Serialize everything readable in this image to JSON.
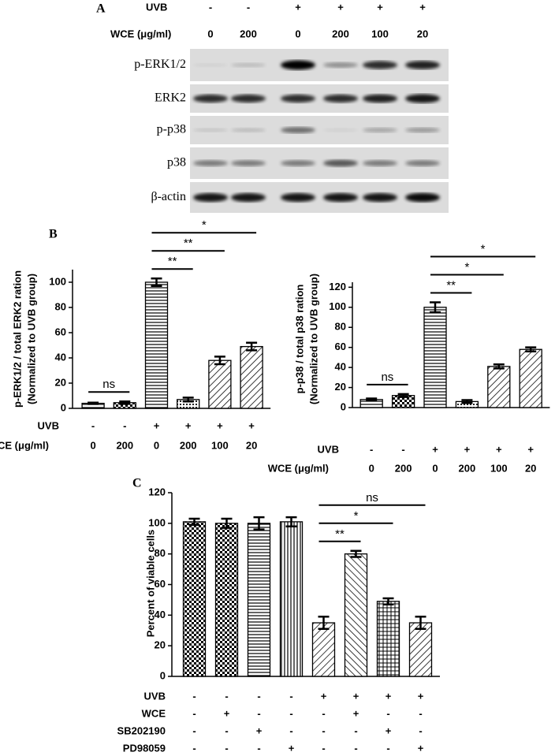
{
  "panel_a": {
    "label": "A",
    "header": [
      {
        "name": "UVB",
        "values": [
          "-",
          "-",
          "+",
          "+",
          "+",
          "+"
        ]
      },
      {
        "name": "WCE (μg/ml)",
        "values": [
          "0",
          "200",
          "0",
          "200",
          "100",
          "20"
        ]
      }
    ],
    "blots": [
      "p-ERK1/2",
      "ERK2",
      "p-p38",
      "p38",
      "β-actin"
    ]
  },
  "chart_data": [
    {
      "type": "bar",
      "panel": "B",
      "y_label": [
        "p-ERK1/2 / total ERK2 ration",
        "(Normalized to UVB group)"
      ],
      "values": [
        4,
        4.5,
        100,
        7,
        38,
        49
      ],
      "errors": [
        0.5,
        1,
        3,
        1.5,
        3,
        3
      ],
      "patterns": [
        "hlines",
        "checker",
        "hlines",
        "dots",
        "diag",
        "diag"
      ],
      "ylim": [
        0,
        110
      ],
      "yticks": [
        0,
        20,
        40,
        60,
        80,
        100
      ],
      "conditions": [
        {
          "name": "UVB",
          "values": [
            "-",
            "-",
            "+",
            "+",
            "+",
            "+"
          ]
        },
        {
          "name": "WCE (μg/ml)",
          "values": [
            "0",
            "200",
            "0",
            "200",
            "100",
            "20"
          ]
        }
      ],
      "annotations": [
        {
          "text": "ns",
          "from": 0,
          "to": 1
        },
        {
          "text": "**",
          "from": 2,
          "to": 3
        },
        {
          "text": "**",
          "from": 2,
          "to": 4
        },
        {
          "text": "*",
          "from": 2,
          "to": 5
        }
      ]
    },
    {
      "type": "bar",
      "y_label": [
        "p-p38 / total p38 ration",
        "(Normalized to UVB group)"
      ],
      "values": [
        8,
        12,
        100,
        6,
        41,
        58
      ],
      "errors": [
        1,
        1.5,
        5,
        1.5,
        2,
        2
      ],
      "patterns": [
        "hlines",
        "checker",
        "hlines",
        "dots",
        "diag",
        "diag"
      ],
      "ylim": [
        0,
        125
      ],
      "yticks": [
        0,
        20,
        40,
        60,
        80,
        100,
        120
      ],
      "conditions": [
        {
          "name": "UVB",
          "values": [
            "-",
            "-",
            "+",
            "+",
            "+",
            "+"
          ]
        },
        {
          "name": "WCE (μg/ml)",
          "values": [
            "0",
            "200",
            "0",
            "200",
            "100",
            "20"
          ]
        }
      ],
      "annotations": [
        {
          "text": "ns",
          "from": 0,
          "to": 1
        },
        {
          "text": "**",
          "from": 2,
          "to": 3
        },
        {
          "text": "*",
          "from": 2,
          "to": 4
        },
        {
          "text": "*",
          "from": 2,
          "to": 5
        }
      ]
    },
    {
      "type": "bar",
      "panel": "C",
      "y_label": [
        "Percent of viable cells"
      ],
      "values": [
        101,
        100,
        100,
        101,
        35,
        80,
        49,
        35
      ],
      "errors": [
        2,
        3,
        4,
        3,
        4,
        2,
        2,
        4
      ],
      "patterns": [
        "checker",
        "checker",
        "hlines",
        "vlines",
        "diag",
        "diagb",
        "grid",
        "diag"
      ],
      "ylim": [
        0,
        120
      ],
      "yticks": [
        0,
        20,
        40,
        60,
        80,
        100,
        120
      ],
      "conditions": [
        {
          "name": "UVB",
          "values": [
            "-",
            "-",
            "-",
            "-",
            "+",
            "+",
            "+",
            "+"
          ]
        },
        {
          "name": "WCE",
          "values": [
            "-",
            "+",
            "-",
            "-",
            "-",
            "+",
            "-",
            "-"
          ]
        },
        {
          "name": "SB202190",
          "values": [
            "-",
            "-",
            "+",
            "-",
            "-",
            "-",
            "+",
            "-"
          ]
        },
        {
          "name": "PD98059",
          "values": [
            "-",
            "-",
            "-",
            "+",
            "-",
            "-",
            "-",
            "+"
          ]
        }
      ],
      "annotations": [
        {
          "text": "**",
          "from": 4,
          "to": 5
        },
        {
          "text": "*",
          "from": 4,
          "to": 6
        },
        {
          "text": "ns",
          "from": 4,
          "to": 7
        }
      ]
    }
  ]
}
